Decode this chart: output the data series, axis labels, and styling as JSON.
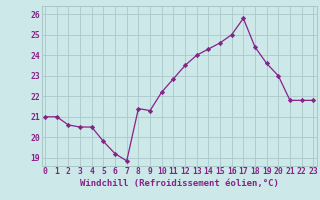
{
  "x": [
    0,
    1,
    2,
    3,
    4,
    5,
    6,
    7,
    8,
    9,
    10,
    11,
    12,
    13,
    14,
    15,
    16,
    17,
    18,
    19,
    20,
    21,
    22,
    23
  ],
  "y": [
    21.0,
    21.0,
    20.6,
    20.5,
    20.5,
    19.8,
    19.2,
    18.85,
    21.4,
    21.3,
    22.2,
    22.85,
    23.5,
    24.0,
    24.3,
    24.6,
    25.0,
    25.8,
    24.4,
    23.6,
    23.0,
    21.8,
    21.8,
    21.8
  ],
  "line_color": "#882288",
  "marker": "D",
  "marker_size": 2.2,
  "line_width": 0.9,
  "bg_color": "#cce8e8",
  "grid_color": "#aac8c8",
  "xlabel": "Windchill (Refroidissement éolien,°C)",
  "xlabel_fontsize": 6.5,
  "tick_fontsize": 5.8,
  "ylim": [
    18.6,
    26.4
  ],
  "yticks": [
    19,
    20,
    21,
    22,
    23,
    24,
    25,
    26
  ],
  "xticks": [
    0,
    1,
    2,
    3,
    4,
    5,
    6,
    7,
    8,
    9,
    10,
    11,
    12,
    13,
    14,
    15,
    16,
    17,
    18,
    19,
    20,
    21,
    22,
    23
  ],
  "xlim": [
    -0.3,
    23.3
  ]
}
